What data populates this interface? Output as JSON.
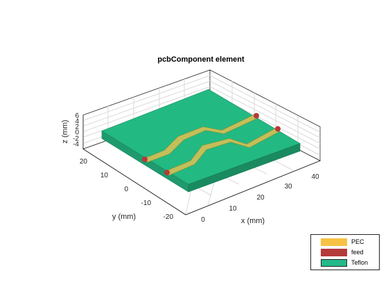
{
  "title": "pcbComponent element",
  "axes": {
    "x_label": "x (mm)",
    "y_label": "y (mm)",
    "z_label": "z (mm)",
    "x_ticks": [
      "0",
      "10",
      "20",
      "30",
      "40"
    ],
    "y_ticks": [
      "20",
      "10",
      "0",
      "-10",
      "-20"
    ],
    "z_ticks": [
      "6",
      "4",
      "2",
      "0",
      "-2",
      "-4"
    ]
  },
  "legend": [
    {
      "label": "PEC",
      "color": "#f7c244"
    },
    {
      "label": "feed",
      "color": "#b53a3a"
    },
    {
      "label": "Teflon",
      "color": "#23b98a"
    }
  ],
  "colors": {
    "substrate_top": "#23b982",
    "substrate_side": "#1f9a6e",
    "trace": "#c3bf5a",
    "feed": "#b53a3a",
    "grid": "#d9d9d9",
    "axis": "#262626"
  }
}
